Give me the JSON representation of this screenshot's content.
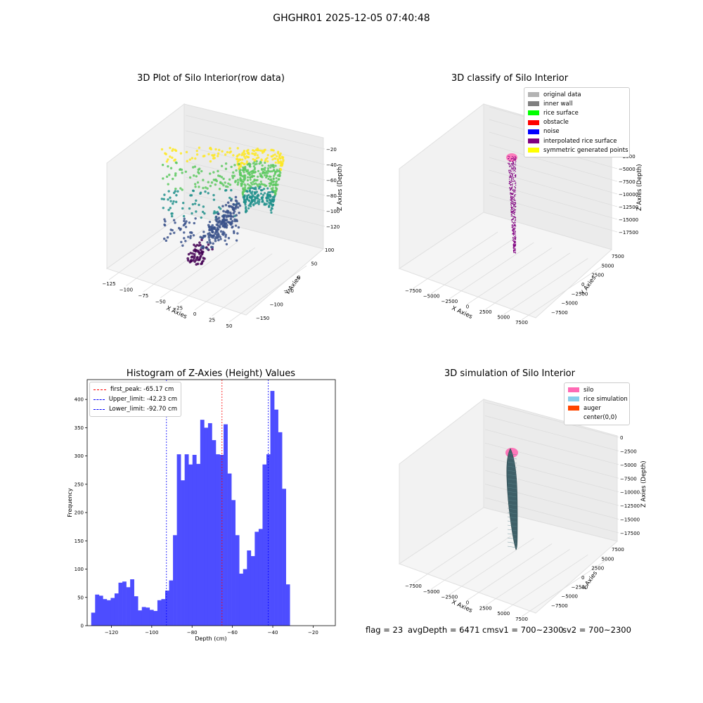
{
  "suptitle": "GHGHR01 2025-12-05 07:40:48",
  "footer": {
    "flag": "flag = 23",
    "avg": "avgDepth = 6471 cmsv1 = 700~2300",
    "sv2": "sv2 = 700~2300"
  },
  "panel1": {
    "title": "3D Plot of Silo Interior(row data)",
    "xlabel": "X Axies",
    "ylabel": "Y Axies",
    "zlabel": "Z Axies (Depth)",
    "xticks": [
      "−125",
      "−100",
      "−75",
      "−50",
      "−25",
      "0",
      "25",
      "50"
    ],
    "yticks": [
      "−150",
      "−100",
      "−50",
      "0",
      "50",
      "100"
    ],
    "zticks": [
      "−20",
      "−40",
      "−60",
      "−80",
      "−100",
      "−120"
    ],
    "colormap": [
      "#440154",
      "#3b528b",
      "#21918c",
      "#5ec962",
      "#fde725"
    ]
  },
  "panel2": {
    "title": "3D classify of Silo Interior",
    "xlabel": "X Axies",
    "ylabel": "Y Axies",
    "zlabel": "Z Axies (Depth)",
    "xticks": [
      "−7500",
      "−5000",
      "−2500",
      "0",
      "2500",
      "5000",
      "7500"
    ],
    "yticks": [
      "−7500",
      "−5000",
      "−2500",
      "0",
      "2500",
      "5000",
      "7500"
    ],
    "zticks": [
      "0",
      "−2500",
      "−5000",
      "−7500",
      "−10000",
      "−12500",
      "−15000",
      "−17500"
    ],
    "legend": [
      {
        "label": "original data",
        "color": "#b3b3b3"
      },
      {
        "label": "inner wall",
        "color": "#808080"
      },
      {
        "label": "rice surface",
        "color": "#00ff00"
      },
      {
        "label": "obstacle",
        "color": "#ff0000"
      },
      {
        "label": "noise",
        "color": "#0000ff"
      },
      {
        "label": "interpolated rice surface",
        "color": "#800080"
      },
      {
        "label": "symmetric generated points",
        "color": "#ffff00"
      }
    ]
  },
  "panel4": {
    "title": "3D simulation of Silo Interior",
    "xlabel": "X Axies",
    "ylabel": "Y Axies",
    "zlabel": "Z Axies (Depth)",
    "xticks": [
      "−7500",
      "−5000",
      "−2500",
      "0",
      "2500",
      "5000",
      "7500"
    ],
    "yticks": [
      "−7500",
      "−5000",
      "−2500",
      "0",
      "2500",
      "5000",
      "7500"
    ],
    "zticks": [
      "0",
      "−2500",
      "−5000",
      "−7500",
      "−10000",
      "−12500",
      "−15000",
      "−17500"
    ],
    "legend": [
      {
        "label": "silo",
        "color": "#ff69b4"
      },
      {
        "label": "rice simulation",
        "color": "#87ceeb"
      },
      {
        "label": "auger",
        "color": "#ff4500"
      },
      {
        "label": "center(0,0)",
        "color": "#ffffff"
      }
    ]
  },
  "chart_data": {
    "type": "bar",
    "title": "Histogram of Z-Axies (Height) Values",
    "xlabel": "Depth (cm)",
    "ylabel": "Frequency",
    "bar_color": "#4d4dff",
    "xlim": [
      -132,
      -9
    ],
    "ylim": [
      0,
      435
    ],
    "xticks": [
      -120,
      -100,
      -80,
      -60,
      -40,
      -20
    ],
    "yticks": [
      0,
      50,
      100,
      150,
      200,
      250,
      300,
      350,
      400
    ],
    "bin_start": -130.0,
    "bin_width": 1.93,
    "values": [
      23,
      55,
      53,
      47,
      45,
      49,
      57,
      76,
      78,
      68,
      82,
      52,
      27,
      33,
      32,
      28,
      26,
      45,
      47,
      62,
      80,
      160,
      303,
      257,
      303,
      285,
      302,
      286,
      364,
      350,
      358,
      328,
      303,
      302,
      356,
      269,
      222,
      160,
      92,
      100,
      133,
      123,
      166,
      171,
      285,
      303,
      415,
      382,
      342,
      242,
      73
    ],
    "lines": [
      {
        "name": "first_peak",
        "label": "first_peak: -65.17 cm",
        "x": -65.17,
        "color": "#ff0000"
      },
      {
        "name": "Upper_limit",
        "label": "Upper_limit: -42.23 cm",
        "x": -42.23,
        "color": "#0000ff"
      },
      {
        "name": "Lower_limit",
        "label": "Lower_limit: -92.70 cm",
        "x": -92.7,
        "color": "#0000ff"
      }
    ],
    "legend_position": "upper-left"
  }
}
